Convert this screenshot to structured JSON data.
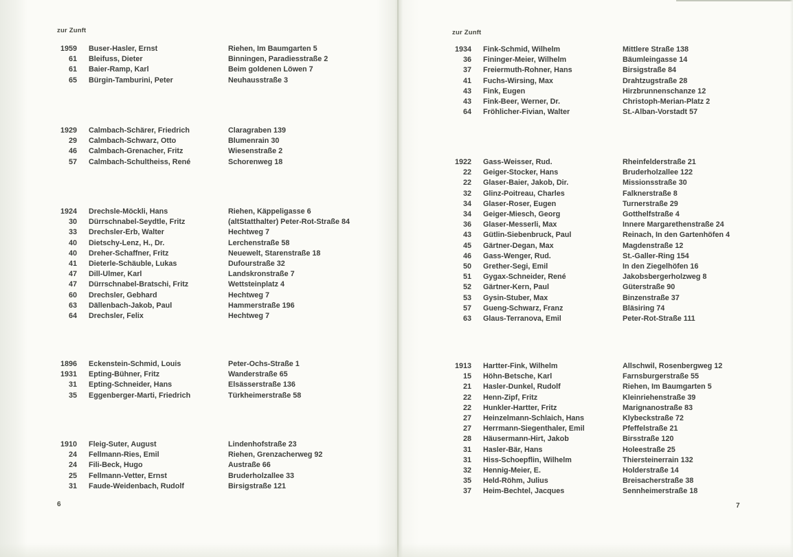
{
  "pages": [
    {
      "header": "zur Zunft",
      "page_number": "6",
      "groups": [
        {
          "entries": [
            [
              "1959",
              "Buser-Hasler, Ernst",
              "Riehen, Im Baumgarten 5"
            ],
            [
              "61",
              "Bleifuss, Dieter",
              "Binningen, Paradiesstraße 2"
            ],
            [
              "61",
              "Baier-Ramp, Karl",
              "Beim goldenen Löwen 7"
            ],
            [
              "65",
              "Bürgin-Tamburini, Peter",
              "Neuhausstraße 3"
            ]
          ]
        },
        {
          "entries": [
            [
              "1929",
              "Calmbach-Schärer, Friedrich",
              "Claragraben 139"
            ],
            [
              "29",
              "Calmbach-Schwarz, Otto",
              "Blumenrain 30"
            ],
            [
              "46",
              "Calmbach-Grenacher, Fritz",
              "Wiesenstraße 2"
            ],
            [
              "57",
              "Calmbach-Schultheiss, René",
              "Schorenweg 18"
            ]
          ]
        },
        {
          "entries": [
            [
              "1924",
              "Drechsle-Möckli, Hans",
              "Riehen, Käppeligasse 6"
            ],
            [
              "30",
              "Dürrschnabel-Seydtle, Fritz",
              "(altStatthalter) Peter-Rot-Straße 84"
            ],
            [
              "33",
              "Drechsler-Erb, Walter",
              "Hechtweg 7"
            ],
            [
              "40",
              "Dietschy-Lenz, H., Dr.",
              "Lerchenstraße 58"
            ],
            [
              "40",
              "Dreher-Schaffner, Fritz",
              "Neuewelt, Starenstraße 18"
            ],
            [
              "41",
              "Dieterle-Schäuble, Lukas",
              "Dufourstraße 32"
            ],
            [
              "47",
              "Dill-Ulmer, Karl",
              "Landskronstraße 7"
            ],
            [
              "47",
              "Dürrschnabel-Bratschi, Fritz",
              "Wettsteinplatz 4"
            ],
            [
              "60",
              "Drechsler, Gebhard",
              "Hechtweg 7"
            ],
            [
              "63",
              "Dällenbach-Jakob, Paul",
              "Hammerstraße 196"
            ],
            [
              "64",
              "Drechsler, Felix",
              "Hechtweg 7"
            ]
          ]
        },
        {
          "entries": [
            [
              "1896",
              "Eckenstein-Schmid, Louis",
              "Peter-Ochs-Straße 1"
            ],
            [
              "1931",
              "Epting-Bühner, Fritz",
              "Wanderstraße 65"
            ],
            [
              "31",
              "Epting-Schneider, Hans",
              "Elsässerstraße 136"
            ],
            [
              "35",
              "Eggenberger-Marti, Friedrich",
              "Türkheimerstraße 58"
            ]
          ]
        },
        {
          "entries": [
            [
              "1910",
              "Fleig-Suter, August",
              "Lindenhofstraße 23"
            ],
            [
              "24",
              "Fellmann-Ries, Emil",
              "Riehen, Grenzacherweg 92"
            ],
            [
              "24",
              "Fili-Beck, Hugo",
              "Austraße 66"
            ],
            [
              "25",
              "Fellmann-Vetter, Ernst",
              "Bruderholzallee 33"
            ],
            [
              "31",
              "Faude-Weidenbach, Rudolf",
              "Birsigstraße 121"
            ]
          ]
        }
      ]
    },
    {
      "header": "zur Zunft",
      "page_number": "7",
      "groups": [
        {
          "entries": [
            [
              "1934",
              "Fink-Schmid, Wilhelm",
              "Mittlere Straße 138"
            ],
            [
              "36",
              "Fininger-Meier, Wilhelm",
              "Bäumleingasse 14"
            ],
            [
              "37",
              "Freiermuth-Rohner, Hans",
              "Birsigstraße 84"
            ],
            [
              "41",
              "Fuchs-Wirsing, Max",
              "Drahtzugstraße 28"
            ],
            [
              "43",
              "Fink, Eugen",
              "Hirzbrunnenschanze 12"
            ],
            [
              "43",
              "Fink-Beer, Werner, Dr.",
              "Christoph-Merian-Platz 2"
            ],
            [
              "64",
              "Fröhlicher-Fivian, Walter",
              "St.-Alban-Vorstadt 57"
            ]
          ]
        },
        {
          "entries": [
            [
              "1922",
              "Gass-Weisser, Rud.",
              "Rheinfelderstraße 21"
            ],
            [
              "22",
              "Geiger-Stocker, Hans",
              "Bruderholzallee 122"
            ],
            [
              "22",
              "Glaser-Baier, Jakob, Dir.",
              "Missionsstraße 30"
            ],
            [
              "32",
              "Glinz-Poitreau, Charles",
              "Falknerstraße 8"
            ],
            [
              "34",
              "Glaser-Roser, Eugen",
              "Turnerstraße 29"
            ],
            [
              "34",
              "Geiger-Miesch, Georg",
              "Gotthelfstraße 4"
            ],
            [
              "36",
              "Glaser-Messerli, Max",
              "Innere Margarethenstraße 24"
            ],
            [
              "43",
              "Gütlin-Siebenbruck, Paul",
              "Reinach, In den Gartenhöfen 4"
            ],
            [
              "45",
              "Gärtner-Degan, Max",
              "Magdenstraße 12"
            ],
            [
              "46",
              "Gass-Wenger, Rud.",
              "St.-Galler-Ring 154"
            ],
            [
              "50",
              "Grether-Segi, Emil",
              "In den Ziegelhöfen 16"
            ],
            [
              "51",
              "Gygax-Schneider, René",
              "Jakobsbergerholzweg 8"
            ],
            [
              "52",
              "Gärtner-Kern, Paul",
              "Güterstraße 90"
            ],
            [
              "53",
              "Gysin-Stuber, Max",
              "Binzenstraße 37"
            ],
            [
              "57",
              "Gueng-Schwarz, Franz",
              "Bläsiring 74"
            ],
            [
              "63",
              "Glaus-Terranova, Emil",
              "Peter-Rot-Straße 111"
            ]
          ]
        },
        {
          "entries": [
            [
              "1913",
              "Hartter-Fink, Wilhelm",
              "Allschwil, Rosenbergweg 12"
            ],
            [
              "15",
              "Höhn-Betsche, Karl",
              "Farnsburgerstraße 55"
            ],
            [
              "21",
              "Hasler-Dunkel, Rudolf",
              "Riehen, Im Baumgarten 5"
            ],
            [
              "22",
              "Henn-Zipf, Fritz",
              "Kleinriehenstraße 39"
            ],
            [
              "22",
              "Hunkler-Hartter, Fritz",
              "Marignanostraße 83"
            ],
            [
              "27",
              "Heinzelmann-Schlaich, Hans",
              "Klybeckstraße 72"
            ],
            [
              "27",
              "Herrmann-Siegenthaler, Emil",
              "Pfeffelstraße 21"
            ],
            [
              "28",
              "Häusermann-Hirt, Jakob",
              "Birsstraße 120"
            ],
            [
              "31",
              "Hasler-Bär, Hans",
              "Holeestraße 25"
            ],
            [
              "31",
              "Hiss-Schoepflin, Wilhelm",
              "Thiersteinerrain 132"
            ],
            [
              "32",
              "Hennig-Meier, E.",
              "Holderstraße 14"
            ],
            [
              "35",
              "Held-Röhm, Julius",
              "Breisacherstraße 38"
            ],
            [
              "37",
              "Heim-Bechtel, Jacques",
              "Sennheimerstraße 18"
            ]
          ]
        }
      ]
    }
  ]
}
